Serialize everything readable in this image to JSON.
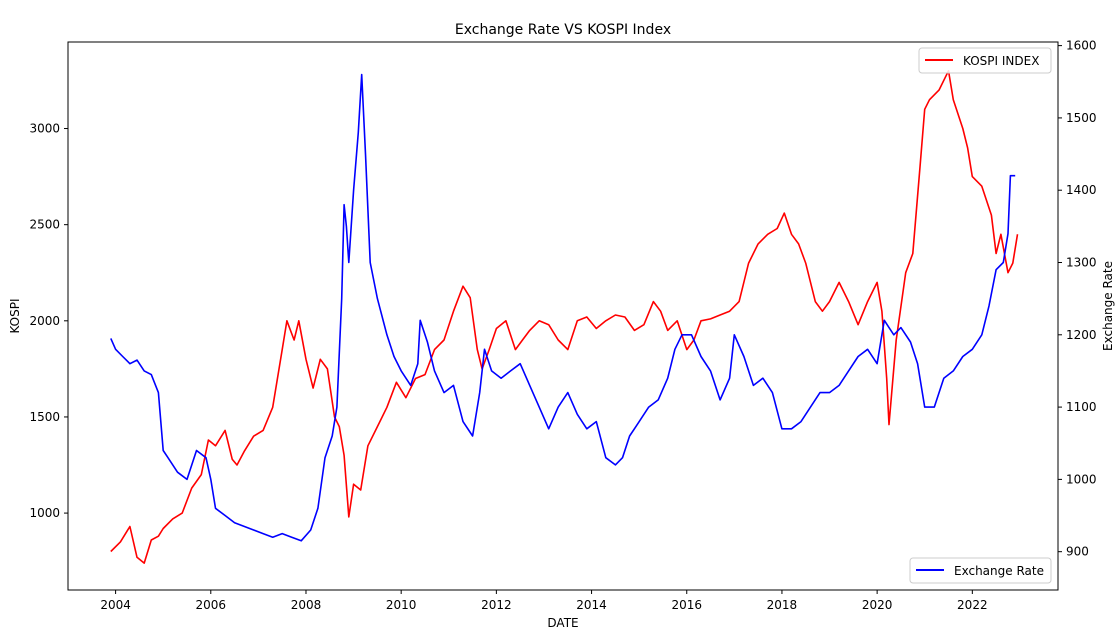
{
  "chart_data": {
    "type": "line",
    "title": "Exchange Rate VS KOSPI Index",
    "xlabel": "DATE",
    "ylabel": "KOSPI",
    "y2label": "Exchange Rate",
    "xlim": [
      2003.0,
      2023.8
    ],
    "ylim": [
      600,
      3450
    ],
    "y2lim": [
      847,
      1605
    ],
    "xticks": [
      "2004",
      "2006",
      "2008",
      "2010",
      "2012",
      "2014",
      "2016",
      "2018",
      "2020",
      "2022"
    ],
    "yticks": [
      "1000",
      "1500",
      "2000",
      "2500",
      "3000"
    ],
    "y2ticks": [
      "900",
      "1000",
      "1100",
      "1200",
      "1300",
      "1400",
      "1500",
      "1600"
    ],
    "grid": false,
    "legend_kospi": "top-right",
    "legend_fx": "bottom-right",
    "series": [
      {
        "name": "KOSPI INDEX",
        "axis": "left",
        "color": "#ff0000",
        "x": [
          2003.9,
          2004.1,
          2004.3,
          2004.45,
          2004.6,
          2004.75,
          2004.9,
          2005.0,
          2005.2,
          2005.4,
          2005.6,
          2005.8,
          2005.95,
          2006.1,
          2006.3,
          2006.45,
          2006.55,
          2006.7,
          2006.9,
          2007.1,
          2007.3,
          2007.5,
          2007.6,
          2007.75,
          2007.85,
          2008.0,
          2008.15,
          2008.3,
          2008.45,
          2008.6,
          2008.7,
          2008.8,
          2008.9,
          2009.0,
          2009.15,
          2009.3,
          2009.5,
          2009.7,
          2009.9,
          2010.1,
          2010.3,
          2010.5,
          2010.7,
          2010.9,
          2011.1,
          2011.3,
          2011.45,
          2011.6,
          2011.7,
          2011.85,
          2012.0,
          2012.2,
          2012.4,
          2012.55,
          2012.7,
          2012.9,
          2013.1,
          2013.3,
          2013.5,
          2013.7,
          2013.9,
          2014.1,
          2014.3,
          2014.5,
          2014.7,
          2014.9,
          2015.1,
          2015.3,
          2015.45,
          2015.6,
          2015.8,
          2016.0,
          2016.15,
          2016.3,
          2016.5,
          2016.7,
          2016.9,
          2017.1,
          2017.3,
          2017.5,
          2017.7,
          2017.9,
          2018.05,
          2018.2,
          2018.35,
          2018.5,
          2018.7,
          2018.85,
          2019.0,
          2019.2,
          2019.4,
          2019.6,
          2019.8,
          2020.0,
          2020.1,
          2020.2,
          2020.25,
          2020.4,
          2020.6,
          2020.75,
          2020.9,
          2021.0,
          2021.1,
          2021.3,
          2021.5,
          2021.6,
          2021.8,
          2021.9,
          2022.0,
          2022.2,
          2022.4,
          2022.5,
          2022.6,
          2022.75,
          2022.85,
          2022.95
        ],
        "y": [
          800,
          850,
          930,
          770,
          740,
          860,
          880,
          920,
          970,
          1000,
          1130,
          1200,
          1380,
          1350,
          1430,
          1280,
          1250,
          1320,
          1400,
          1430,
          1550,
          1850,
          2000,
          1900,
          2000,
          1800,
          1650,
          1800,
          1750,
          1500,
          1450,
          1300,
          980,
          1150,
          1120,
          1350,
          1450,
          1550,
          1680,
          1600,
          1700,
          1720,
          1850,
          1900,
          2050,
          2180,
          2120,
          1850,
          1750,
          1850,
          1960,
          2000,
          1850,
          1900,
          1950,
          2000,
          1980,
          1900,
          1850,
          2000,
          2020,
          1960,
          2000,
          2030,
          2020,
          1950,
          1980,
          2100,
          2050,
          1950,
          2000,
          1850,
          1900,
          2000,
          2010,
          2030,
          2050,
          2100,
          2300,
          2400,
          2450,
          2480,
          2560,
          2450,
          2400,
          2300,
          2100,
          2050,
          2100,
          2200,
          2100,
          1980,
          2100,
          2200,
          2050,
          1700,
          1460,
          1900,
          2250,
          2350,
          2800,
          3100,
          3150,
          3200,
          3300,
          3150,
          3000,
          2900,
          2750,
          2700,
          2550,
          2350,
          2450,
          2250,
          2300,
          2450
        ]
      },
      {
        "name": "Exchange Rate",
        "axis": "right",
        "color": "#0000ff",
        "x": [
          2003.9,
          2004.0,
          2004.15,
          2004.3,
          2004.45,
          2004.6,
          2004.75,
          2004.9,
          2005.0,
          2005.1,
          2005.3,
          2005.5,
          2005.7,
          2005.9,
          2006.0,
          2006.1,
          2006.3,
          2006.5,
          2006.7,
          2006.9,
          2007.1,
          2007.3,
          2007.5,
          2007.7,
          2007.9,
          2008.1,
          2008.25,
          2008.4,
          2008.55,
          2008.65,
          2008.75,
          2008.8,
          2008.85,
          2008.9,
          2009.0,
          2009.1,
          2009.17,
          2009.25,
          2009.35,
          2009.5,
          2009.7,
          2009.85,
          2010.0,
          2010.2,
          2010.35,
          2010.4,
          2010.55,
          2010.7,
          2010.9,
          2011.1,
          2011.3,
          2011.5,
          2011.65,
          2011.75,
          2011.9,
          2012.1,
          2012.3,
          2012.5,
          2012.7,
          2012.9,
          2013.1,
          2013.3,
          2013.5,
          2013.7,
          2013.9,
          2014.1,
          2014.3,
          2014.5,
          2014.65,
          2014.8,
          2015.0,
          2015.2,
          2015.4,
          2015.6,
          2015.75,
          2015.9,
          2016.1,
          2016.3,
          2016.5,
          2016.7,
          2016.9,
          2017.0,
          2017.2,
          2017.4,
          2017.6,
          2017.8,
          2018.0,
          2018.2,
          2018.4,
          2018.6,
          2018.8,
          2019.0,
          2019.2,
          2019.4,
          2019.6,
          2019.8,
          2020.0,
          2020.15,
          2020.25,
          2020.35,
          2020.5,
          2020.7,
          2020.85,
          2021.0,
          2021.2,
          2021.4,
          2021.6,
          2021.8,
          2022.0,
          2022.2,
          2022.35,
          2022.5,
          2022.65,
          2022.75,
          2022.8,
          2022.9
        ],
        "y": [
          1195,
          1180,
          1170,
          1160,
          1165,
          1150,
          1145,
          1120,
          1040,
          1030,
          1010,
          1000,
          1040,
          1030,
          1000,
          960,
          950,
          940,
          935,
          930,
          925,
          920,
          925,
          920,
          915,
          930,
          960,
          1030,
          1060,
          1100,
          1250,
          1380,
          1350,
          1300,
          1400,
          1480,
          1560,
          1450,
          1300,
          1250,
          1200,
          1170,
          1150,
          1130,
          1160,
          1220,
          1190,
          1150,
          1120,
          1130,
          1080,
          1060,
          1120,
          1180,
          1150,
          1140,
          1150,
          1160,
          1130,
          1100,
          1070,
          1100,
          1120,
          1090,
          1070,
          1080,
          1030,
          1020,
          1030,
          1060,
          1080,
          1100,
          1110,
          1140,
          1180,
          1200,
          1200,
          1170,
          1150,
          1110,
          1140,
          1200,
          1170,
          1130,
          1140,
          1120,
          1070,
          1070,
          1080,
          1100,
          1120,
          1120,
          1130,
          1150,
          1170,
          1180,
          1160,
          1220,
          1210,
          1200,
          1210,
          1190,
          1160,
          1100,
          1100,
          1140,
          1150,
          1170,
          1180,
          1200,
          1240,
          1290,
          1300,
          1340,
          1420,
          1420
        ]
      }
    ]
  }
}
